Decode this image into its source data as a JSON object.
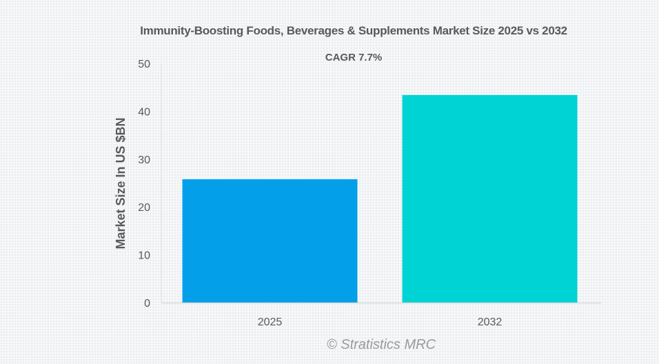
{
  "chart_data": {
    "type": "bar",
    "title": "Immunity-Boosting Foods, Beverages & Supplements Market Size 2025 vs 2032",
    "subtitle": "CAGR 7.7%",
    "categories": [
      "2025",
      "2032"
    ],
    "values": [
      25.8,
      43.4
    ],
    "colors": [
      "#03a0e9",
      "#00d3d4"
    ],
    "xlabel": "",
    "ylabel": "Market Size In US $BN",
    "ylim": [
      0,
      50
    ],
    "yticks": [
      0,
      10,
      20,
      30,
      40,
      50
    ],
    "grid": false,
    "legend": "none",
    "credit": "© Stratistics MRC"
  }
}
